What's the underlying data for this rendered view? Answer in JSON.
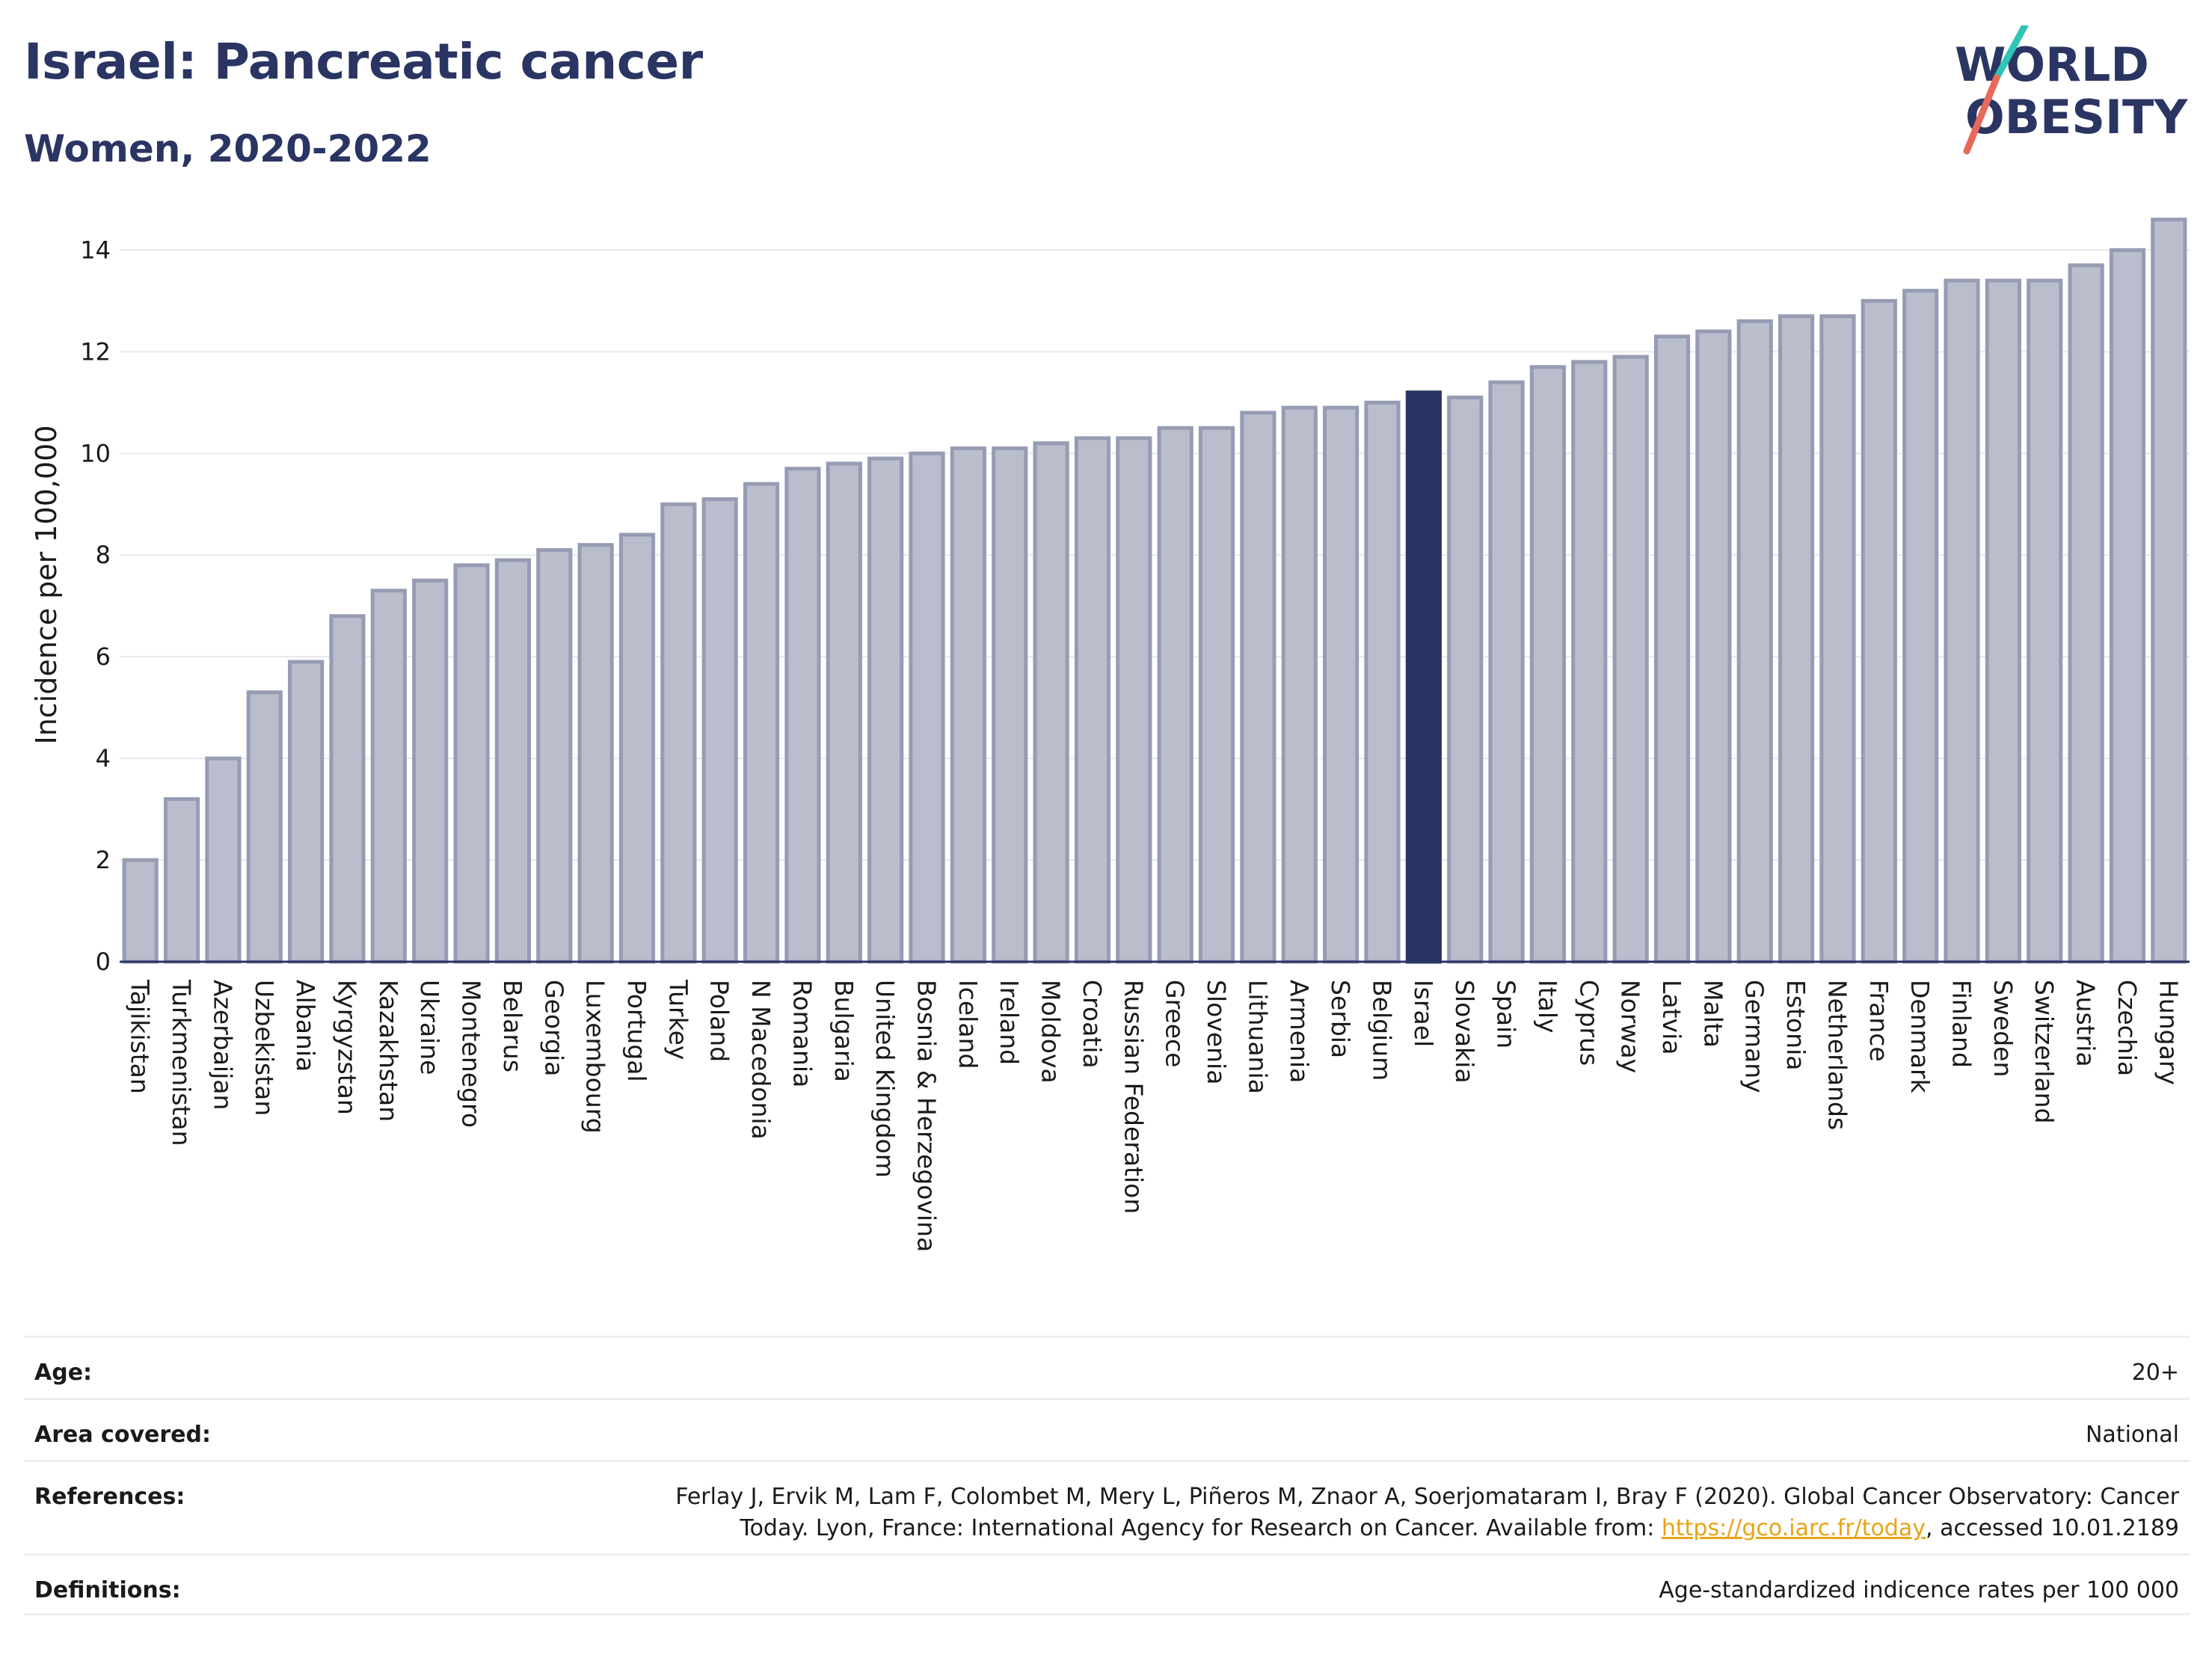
{
  "header": {
    "title": "Israel: Pancreatic cancer",
    "subtitle": "Women, 2020-2022"
  },
  "logo": {
    "line1": "WORLD",
    "line2": "OBESITY",
    "colors": {
      "text": "#2b3563",
      "slash_top": "#2ec4b6",
      "slash_bottom": "#e8685a"
    }
  },
  "chart_data": {
    "type": "bar",
    "ylabel": "Incidence per 100,000",
    "xlabel": "",
    "ylim": [
      0,
      14.8
    ],
    "yticks": [
      0,
      2,
      4,
      6,
      8,
      10,
      12,
      14
    ],
    "grid": true,
    "highlight": "Israel",
    "colors": {
      "bar": "#b9bdcc",
      "bar_edge": "#969cb3",
      "highlight": "#2b3563"
    },
    "categories": [
      "Tajikistan",
      "Turkmenistan",
      "Azerbaijan",
      "Uzbekistan",
      "Albania",
      "Kyrgyzstan",
      "Kazakhstan",
      "Ukraine",
      "Montenegro",
      "Belarus",
      "Georgia",
      "Luxembourg",
      "Portugal",
      "Turkey",
      "Poland",
      "N Macedonia",
      "Romania",
      "Bulgaria",
      "United Kingdom",
      "Bosnia & Herzegovina",
      "Iceland",
      "Ireland",
      "Moldova",
      "Croatia",
      "Russian Federation",
      "Greece",
      "Slovenia",
      "Lithuania",
      "Armenia",
      "Serbia",
      "Belgium",
      "Israel",
      "Slovakia",
      "Spain",
      "Italy",
      "Cyprus",
      "Norway",
      "Latvia",
      "Malta",
      "Germany",
      "Estonia",
      "Netherlands",
      "France",
      "Denmark",
      "Finland",
      "Sweden",
      "Switzerland",
      "Austria",
      "Czechia",
      "Hungary"
    ],
    "values": [
      2.0,
      3.2,
      4.0,
      5.3,
      5.9,
      6.8,
      7.3,
      7.5,
      7.8,
      7.9,
      8.1,
      8.2,
      8.4,
      9.0,
      9.1,
      9.4,
      9.7,
      9.8,
      9.9,
      10.0,
      10.1,
      10.1,
      10.2,
      10.3,
      10.3,
      10.5,
      10.5,
      10.8,
      10.9,
      10.9,
      11.0,
      11.2,
      11.1,
      11.4,
      11.7,
      11.8,
      11.9,
      12.3,
      12.4,
      12.6,
      12.7,
      12.7,
      13.0,
      13.2,
      13.4,
      13.4,
      13.4,
      13.7,
      14.0,
      14.6
    ]
  },
  "meta": {
    "age_label": "Age:",
    "age_value": "20+",
    "area_label": "Area covered:",
    "area_value": "National",
    "references_label": "References:",
    "references_text": "Ferlay J, Ervik M, Lam F, Colombet M, Mery L, Piñeros M, Znaor A, Soerjomataram I, Bray F (2020). Global Cancer Observatory: Cancer Today. Lyon, France: International Agency for Research on Cancer. Available from: ",
    "references_link": "https://gco.iarc.fr/today",
    "references_suffix": ", accessed 10.01.2189",
    "definitions_label": "Definitions:",
    "definitions_value": "Age-standardized indicence rates per 100 000"
  }
}
